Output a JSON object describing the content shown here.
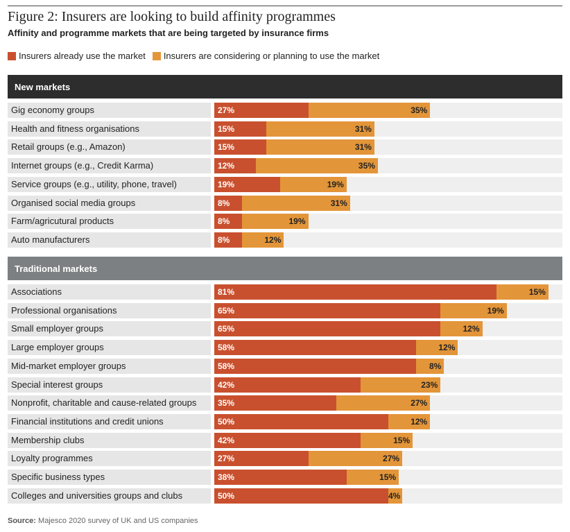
{
  "title": "Figure 2: Insurers are looking to build affinity programmes",
  "subtitle": "Affinity and programme markets that are being targeted by insurance firms",
  "legend": {
    "already": "Insurers already use the market",
    "considering": "Insurers are considering or planning to use the market"
  },
  "source": {
    "label": "Source:",
    "text": "Majesco 2020 survey of UK and US companies"
  },
  "colors": {
    "already": "#c9502e",
    "considering": "#e39539",
    "new_header": "#2d2d2d",
    "traditional_header": "#7d8082",
    "label_bg": "#e6e6e6"
  },
  "chart_data": {
    "type": "bar",
    "orientation": "horizontal",
    "stacked": true,
    "unit": "%",
    "series_names": [
      "Insurers already use the market",
      "Insurers are considering or planning to use the market"
    ],
    "groups": [
      {
        "name": "New markets",
        "rows": [
          {
            "label": "Gig economy groups",
            "already": 27,
            "considering": 35
          },
          {
            "label": "Health and fitness organisations",
            "already": 15,
            "considering": 31
          },
          {
            "label": "Retail groups (e.g., Amazon)",
            "already": 15,
            "considering": 31
          },
          {
            "label": "Internet groups (e.g., Credit Karma)",
            "already": 12,
            "considering": 35
          },
          {
            "label": "Service groups (e.g., utility, phone, travel)",
            "already": 19,
            "considering": 19
          },
          {
            "label": "Organised social media groups",
            "already": 8,
            "considering": 31
          },
          {
            "label": "Farm/agricutural products",
            "already": 8,
            "considering": 19
          },
          {
            "label": "Auto manufacturers",
            "already": 8,
            "considering": 12
          }
        ]
      },
      {
        "name": "Traditional markets",
        "rows": [
          {
            "label": "Associations",
            "already": 81,
            "considering": 15
          },
          {
            "label": "Professional organisations",
            "already": 65,
            "considering": 19
          },
          {
            "label": "Small employer groups",
            "already": 65,
            "considering": 12
          },
          {
            "label": "Large employer groups",
            "already": 58,
            "considering": 12
          },
          {
            "label": "Mid-market employer groups",
            "already": 58,
            "considering": 8
          },
          {
            "label": "Special interest groups",
            "already": 42,
            "considering": 23
          },
          {
            "label": "Nonprofit, charitable and cause-related groups",
            "already": 35,
            "considering": 27
          },
          {
            "label": "Financial institutions and credit unions",
            "already": 50,
            "considering": 12
          },
          {
            "label": "Membership clubs",
            "already": 42,
            "considering": 15
          },
          {
            "label": "Loyalty programmes",
            "already": 27,
            "considering": 27
          },
          {
            "label": "Specific business types",
            "already": 38,
            "considering": 15
          },
          {
            "label": "Colleges and universities groups and clubs",
            "already": 50,
            "considering": 4
          }
        ]
      }
    ]
  }
}
